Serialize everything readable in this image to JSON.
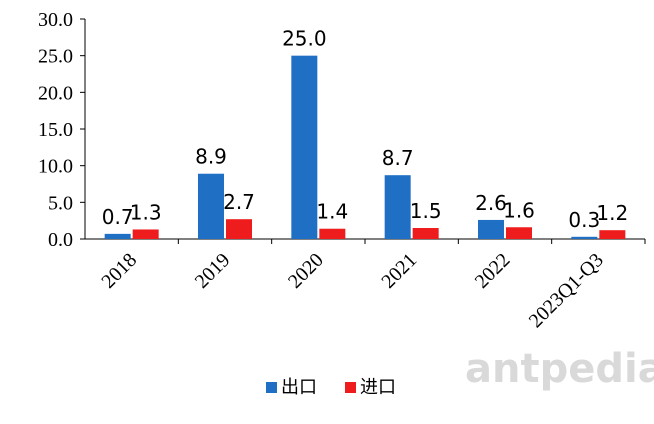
{
  "chart_data": {
    "type": "bar",
    "categories": [
      "2018",
      "2019",
      "2020",
      "2021",
      "2022",
      "2023Q1-Q3"
    ],
    "series": [
      {
        "name": "出口",
        "values": [
          0.7,
          8.9,
          25.0,
          8.7,
          2.6,
          0.3
        ],
        "labels": [
          "0.7",
          "8.9",
          "25.0",
          "8.7",
          "2.6",
          "0.3"
        ],
        "color": "#1f6fc5"
      },
      {
        "name": "进口",
        "values": [
          1.3,
          2.7,
          1.4,
          1.5,
          1.6,
          1.2
        ],
        "labels": [
          "1.3",
          "2.7",
          "1.4",
          "1.5",
          "1.6",
          "1.2"
        ],
        "color": "#ee1c1c"
      }
    ],
    "yticks": [
      "0.0",
      "5.0",
      "10.0",
      "15.0",
      "20.0",
      "25.0",
      "30.0"
    ],
    "ylim": [
      0,
      30
    ],
    "grid": false,
    "legend": "bottom",
    "title": "",
    "xlabel": "",
    "ylabel": ""
  },
  "watermark": "antpedia"
}
